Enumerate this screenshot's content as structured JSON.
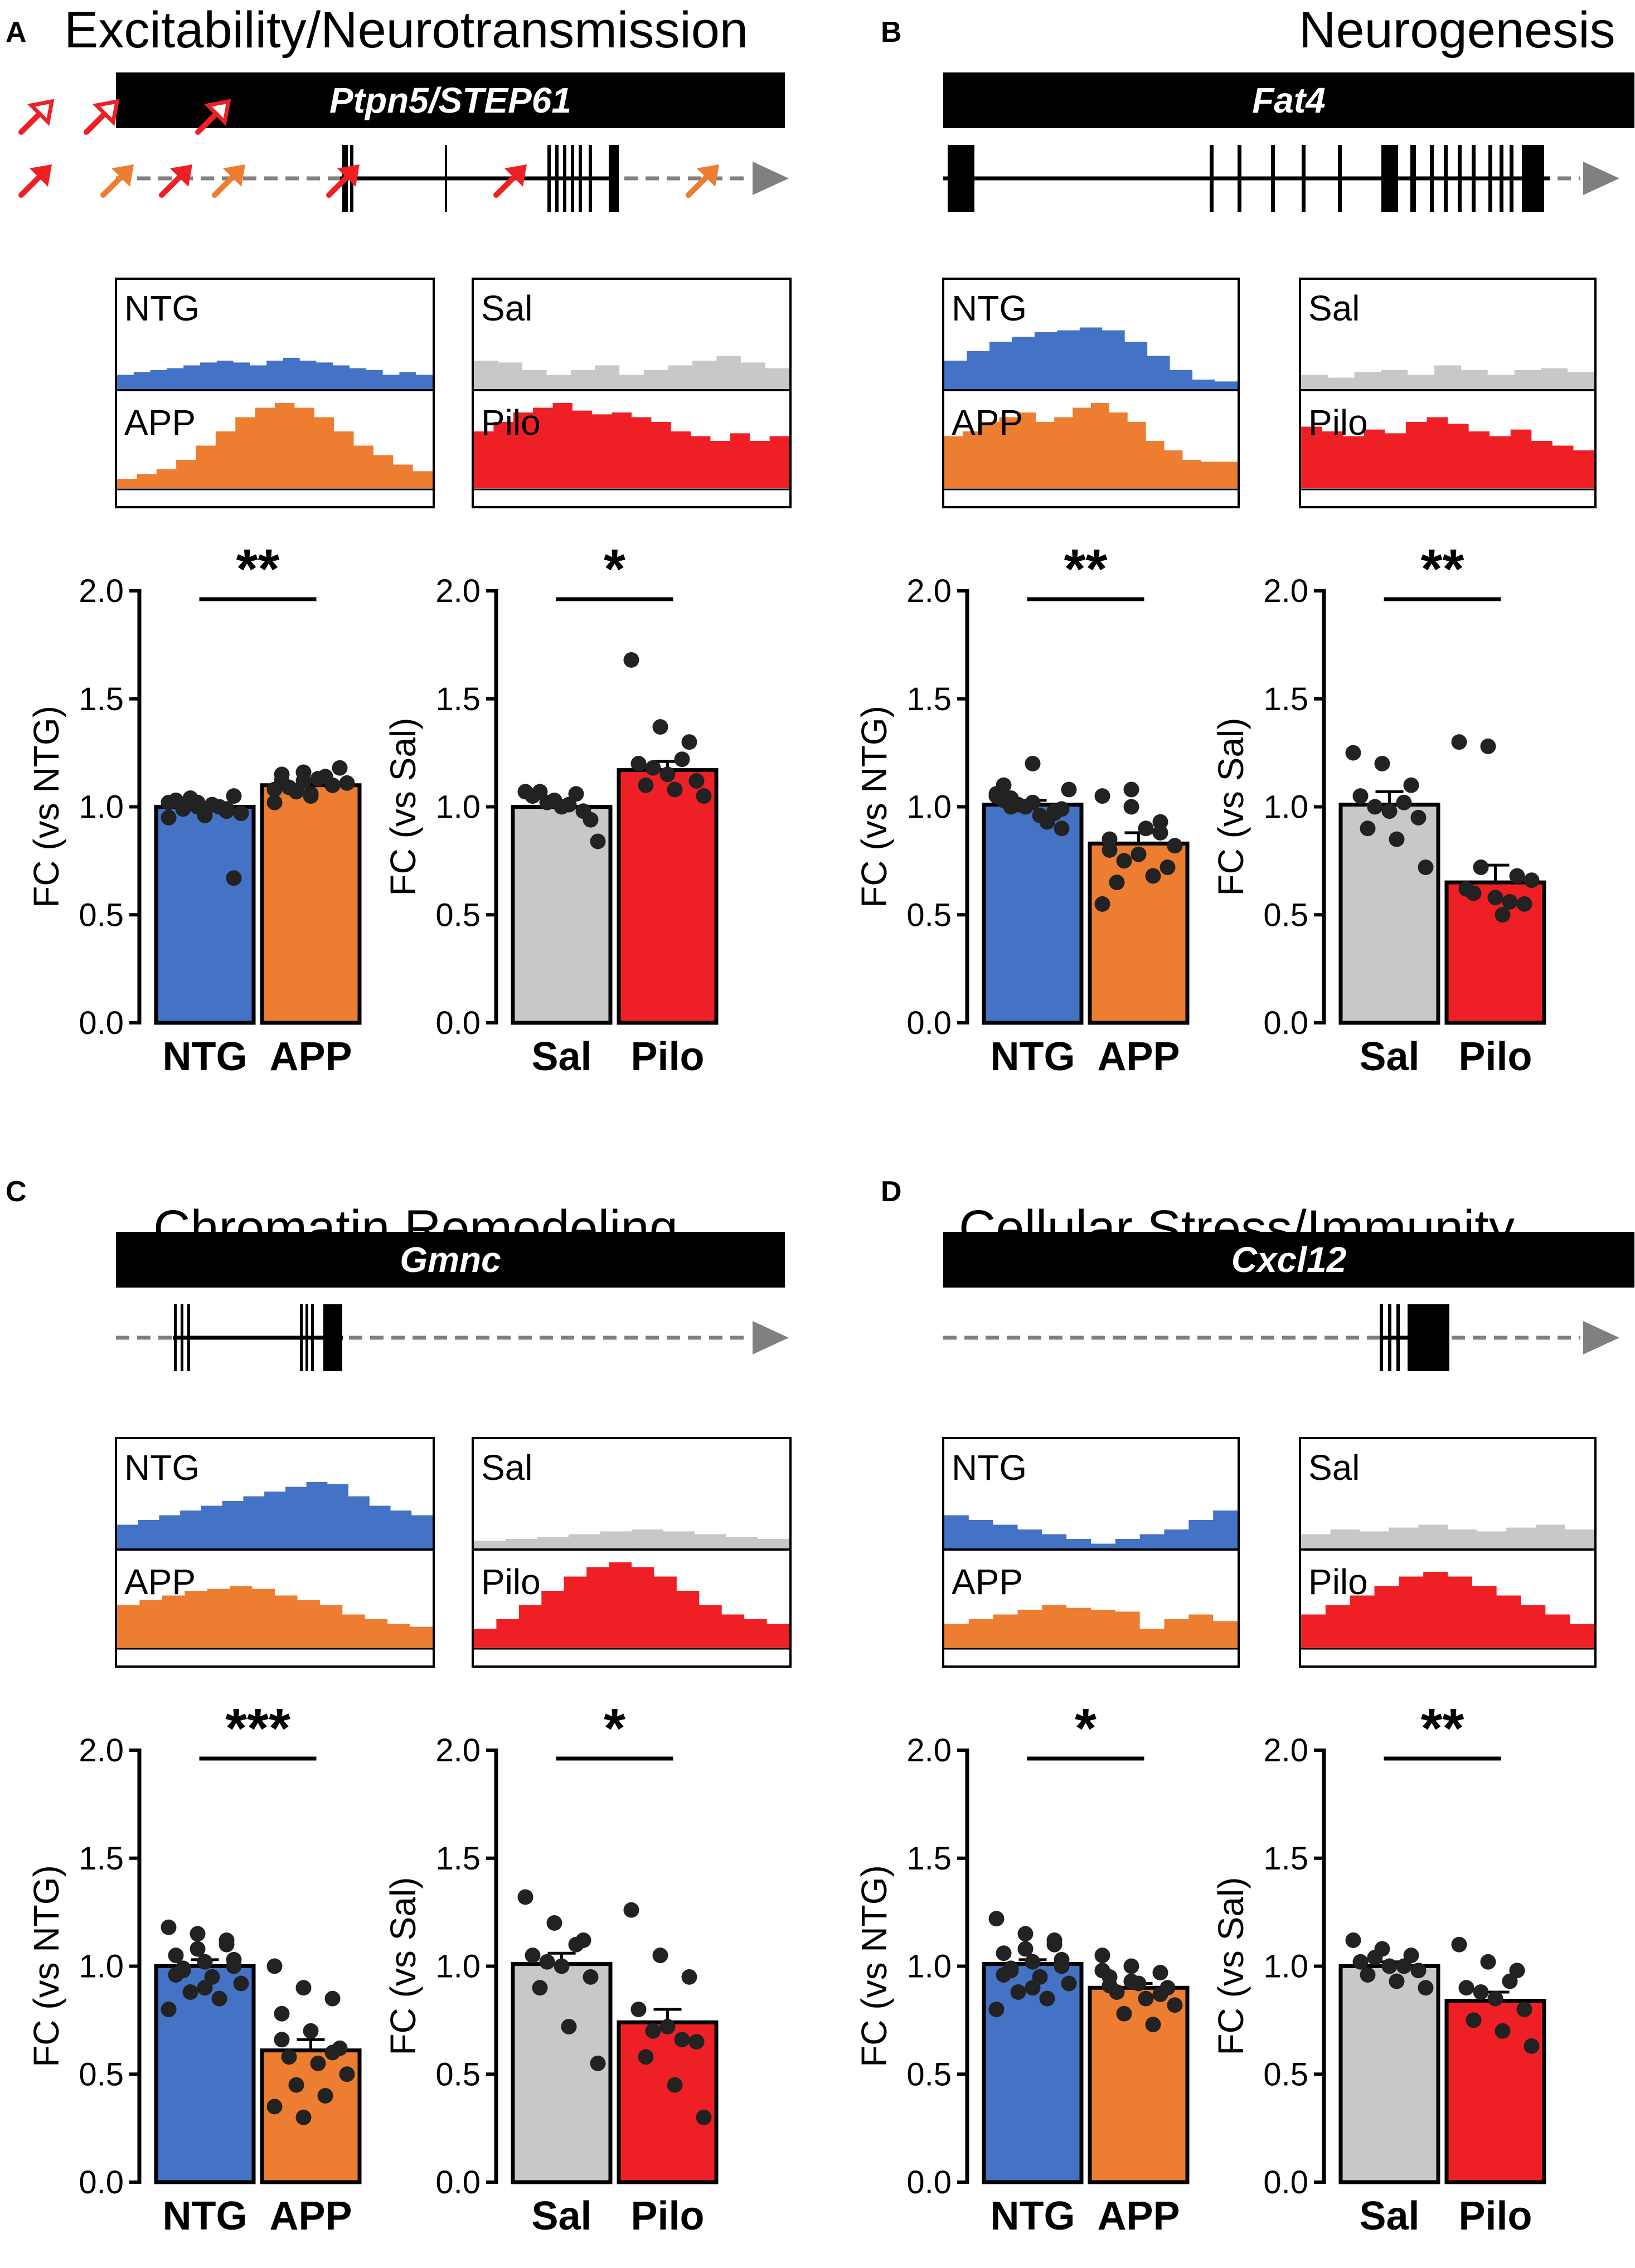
{
  "figure": {
    "panels": [
      {
        "letter": "A",
        "title": "Excitability/Neurotransmission",
        "gene": "Ptpn5/STEP61",
        "gene_italic": true,
        "tracks": [
          {
            "top_label": "NTG",
            "bottom_label": "APP",
            "top_color": "#4472C4",
            "bottom_color": "#ED7D31"
          },
          {
            "top_label": "Sal",
            "bottom_label": "Pilo",
            "top_color": "#C8C8C8",
            "bottom_color": "#EE2026"
          }
        ]
      },
      {
        "letter": "B",
        "title": "Neurogenesis",
        "gene": "Fat4",
        "gene_italic": true,
        "tracks": [
          {
            "top_label": "NTG",
            "bottom_label": "APP",
            "top_color": "#4472C4",
            "bottom_color": "#ED7D31"
          },
          {
            "top_label": "Sal",
            "bottom_label": "Pilo",
            "top_color": "#C8C8C8",
            "bottom_color": "#EE2026"
          }
        ]
      },
      {
        "letter": "C",
        "title": "Chromatin Remodeling",
        "gene": "Gmnc",
        "gene_italic": true,
        "tracks": [
          {
            "top_label": "NTG",
            "bottom_label": "APP",
            "top_color": "#4472C4",
            "bottom_color": "#ED7D31"
          },
          {
            "top_label": "Sal",
            "bottom_label": "Pilo",
            "top_color": "#C8C8C8",
            "bottom_color": "#EE2026"
          }
        ]
      },
      {
        "letter": "D",
        "title": "Cellular Stress/Immunity",
        "gene": "Cxcl12",
        "gene_italic": true,
        "tracks": [
          {
            "top_label": "NTG",
            "bottom_label": "APP",
            "top_color": "#4472C4",
            "bottom_color": "#ED7D31"
          },
          {
            "top_label": "Sal",
            "bottom_label": "Pilo",
            "top_color": "#C8C8C8",
            "bottom_color": "#EE2026"
          }
        ]
      }
    ]
  },
  "chart_data": [
    {
      "panel": "A",
      "type": "bar",
      "categories": [
        "NTG",
        "APP"
      ],
      "values": [
        1.0,
        1.1
      ],
      "sem": [
        0.02,
        0.02
      ],
      "colors": [
        "#4472C4",
        "#ED7D31"
      ],
      "ylabel": "FC (vs NTG)",
      "ylim": [
        0,
        2.0
      ],
      "yticks": [
        "0.0",
        "0.5",
        "1.0",
        "1.5",
        "2.0"
      ],
      "significance": "**",
      "points": [
        [
          1.02,
          1.0,
          0.98,
          1.03,
          0.96,
          1.05,
          0.99,
          1.01,
          0.97,
          1.04,
          1.0,
          0.95,
          1.02,
          0.99,
          1.03,
          0.98,
          0.67,
          1.0
        ],
        [
          1.08,
          1.12,
          1.1,
          1.15,
          1.05,
          1.18,
          1.09,
          1.13,
          1.11,
          1.07,
          1.14,
          1.02,
          1.16,
          1.1,
          1.12,
          1.06
        ]
      ]
    },
    {
      "panel": "A",
      "type": "bar",
      "categories": [
        "Sal",
        "Pilo"
      ],
      "values": [
        1.0,
        1.17
      ],
      "sem": [
        0.03,
        0.04
      ],
      "colors": [
        "#C8C8C8",
        "#EE2026"
      ],
      "ylabel": "FC (vs Sal)",
      "ylim": [
        0,
        2.0
      ],
      "yticks": [
        "0.0",
        "0.5",
        "1.0",
        "1.5",
        "2.0"
      ],
      "significance": "*",
      "points": [
        [
          1.07,
          1.03,
          0.98,
          1.05,
          1.0,
          0.94,
          1.07,
          1.01,
          0.84,
          1.02,
          1.06
        ],
        [
          1.68,
          1.37,
          1.3,
          1.2,
          1.15,
          1.12,
          1.1,
          1.08,
          1.05,
          1.18,
          1.22
        ]
      ]
    },
    {
      "panel": "B",
      "type": "bar",
      "categories": [
        "NTG",
        "APP"
      ],
      "values": [
        1.01,
        0.83
      ],
      "sem": [
        0.02,
        0.05
      ],
      "colors": [
        "#4472C4",
        "#ED7D31"
      ],
      "ylabel": "FC (vs NTG)",
      "ylim": [
        0,
        2.0
      ],
      "yticks": [
        "0.0",
        "0.5",
        "1.0",
        "1.5",
        "2.0"
      ],
      "significance": "**",
      "points": [
        [
          1.05,
          1.0,
          0.97,
          1.1,
          1.02,
          0.99,
          1.04,
          0.96,
          1.08,
          1.01,
          0.93,
          1.06,
          1.0,
          0.98,
          1.03,
          1.2,
          0.9,
          1.0
        ],
        [
          1.05,
          1.0,
          0.93,
          0.85,
          0.78,
          0.72,
          0.65,
          0.9,
          0.82,
          0.75,
          0.68,
          0.55,
          1.08,
          0.88,
          0.8
        ]
      ]
    },
    {
      "panel": "B",
      "type": "bar",
      "categories": [
        "Sal",
        "Pilo"
      ],
      "values": [
        1.01,
        0.65
      ],
      "sem": [
        0.06,
        0.08
      ],
      "colors": [
        "#C8C8C8",
        "#EE2026"
      ],
      "ylabel": "FC (vs Sal)",
      "ylim": [
        0,
        2.0
      ],
      "yticks": [
        "0.0",
        "0.5",
        "1.0",
        "1.5",
        "2.0"
      ],
      "significance": "**",
      "points": [
        [
          1.25,
          1.2,
          1.1,
          1.05,
          0.98,
          0.95,
          0.9,
          0.85,
          0.72,
          1.0,
          1.02
        ],
        [
          1.3,
          1.28,
          0.68,
          0.62,
          0.58,
          0.55,
          0.6,
          0.5,
          0.66,
          0.72,
          0.56
        ]
      ]
    },
    {
      "panel": "C",
      "type": "bar",
      "categories": [
        "NTG",
        "APP"
      ],
      "values": [
        1.0,
        0.61
      ],
      "sem": [
        0.03,
        0.05
      ],
      "colors": [
        "#4472C4",
        "#ED7D31"
      ],
      "ylabel": "FC (vs NTG)",
      "ylim": [
        0,
        2.0
      ],
      "yticks": [
        "0.0",
        "0.5",
        "1.0",
        "1.5",
        "2.0"
      ],
      "significance": "***",
      "points": [
        [
          1.18,
          1.15,
          1.1,
          1.05,
          1.02,
          1.0,
          0.98,
          0.95,
          0.92,
          0.88,
          0.85,
          0.8,
          1.08,
          1.12,
          0.96,
          0.9,
          1.03,
          0.99
        ],
        [
          1.0,
          0.9,
          0.85,
          0.78,
          0.7,
          0.62,
          0.58,
          0.55,
          0.5,
          0.45,
          0.4,
          0.35,
          0.3,
          0.6,
          0.66
        ]
      ]
    },
    {
      "panel": "C",
      "type": "bar",
      "categories": [
        "Sal",
        "Pilo"
      ],
      "values": [
        1.01,
        0.74
      ],
      "sem": [
        0.05,
        0.06
      ],
      "colors": [
        "#C8C8C8",
        "#EE2026"
      ],
      "ylabel": "FC (vs Sal)",
      "ylim": [
        0,
        2.0
      ],
      "yticks": [
        "0.0",
        "0.5",
        "1.0",
        "1.5",
        "2.0"
      ],
      "significance": "*",
      "points": [
        [
          1.32,
          1.2,
          1.12,
          1.05,
          1.0,
          0.95,
          0.9,
          0.72,
          0.55,
          1.02,
          1.1
        ],
        [
          1.26,
          1.05,
          0.95,
          0.8,
          0.72,
          0.65,
          0.58,
          0.45,
          0.3,
          0.7,
          0.66
        ]
      ]
    },
    {
      "panel": "D",
      "type": "bar",
      "categories": [
        "NTG",
        "APP"
      ],
      "values": [
        1.01,
        0.9
      ],
      "sem": [
        0.02,
        0.02
      ],
      "colors": [
        "#4472C4",
        "#ED7D31"
      ],
      "ylabel": "FC (vs NTG)",
      "ylim": [
        0,
        2.0
      ],
      "yticks": [
        "0.0",
        "0.5",
        "1.0",
        "1.5",
        "2.0"
      ],
      "significance": "*",
      "points": [
        [
          1.22,
          1.15,
          1.1,
          1.06,
          1.02,
          1.0,
          0.98,
          0.95,
          0.92,
          0.88,
          0.85,
          0.8,
          1.08,
          1.12,
          0.96,
          0.9,
          1.03,
          0.99
        ],
        [
          1.05,
          1.0,
          0.97,
          0.95,
          0.92,
          0.9,
          0.88,
          0.85,
          0.82,
          0.78,
          0.73,
          0.98,
          0.93,
          0.87,
          0.91
        ]
      ]
    },
    {
      "panel": "D",
      "type": "bar",
      "categories": [
        "Sal",
        "Pilo"
      ],
      "values": [
        1.0,
        0.84
      ],
      "sem": [
        0.02,
        0.04
      ],
      "colors": [
        "#C8C8C8",
        "#EE2026"
      ],
      "ylabel": "FC (vs Sal)",
      "ylim": [
        0,
        2.0
      ],
      "yticks": [
        "0.0",
        "0.5",
        "1.0",
        "1.5",
        "2.0"
      ],
      "significance": "**",
      "points": [
        [
          1.12,
          1.08,
          1.05,
          1.02,
          1.0,
          0.98,
          0.96,
          0.93,
          0.9,
          1.04,
          1.0
        ],
        [
          1.1,
          1.02,
          0.98,
          0.9,
          0.85,
          0.8,
          0.75,
          0.7,
          0.63,
          0.88,
          0.93
        ]
      ]
    }
  ]
}
